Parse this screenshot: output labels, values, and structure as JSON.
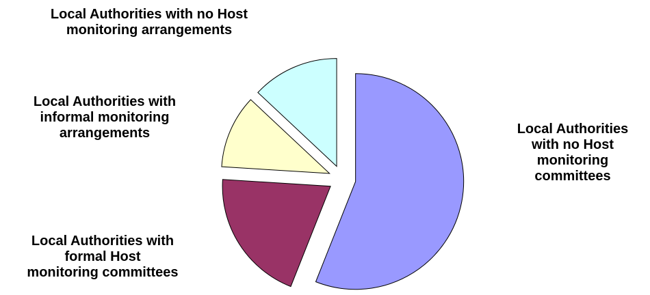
{
  "chart_data": {
    "type": "pie",
    "title": "",
    "slices": [
      {
        "label": "Local Authorities\nwith no Host\nmonitoring\ncommittees",
        "value": 56,
        "color": "#9999ff"
      },
      {
        "label": "Local Authorities with\nformal Host\nmonitoring committees",
        "value": 20,
        "color": "#993366"
      },
      {
        "label": "Local Authorities with\ninformal monitoring\narrangements",
        "value": 11,
        "color": "#ffffcc"
      },
      {
        "label": "Local Authorities with no Host\nmonitoring arrangements",
        "value": 13,
        "color": "#ccffff"
      }
    ],
    "exploded": true,
    "legend": "none"
  }
}
